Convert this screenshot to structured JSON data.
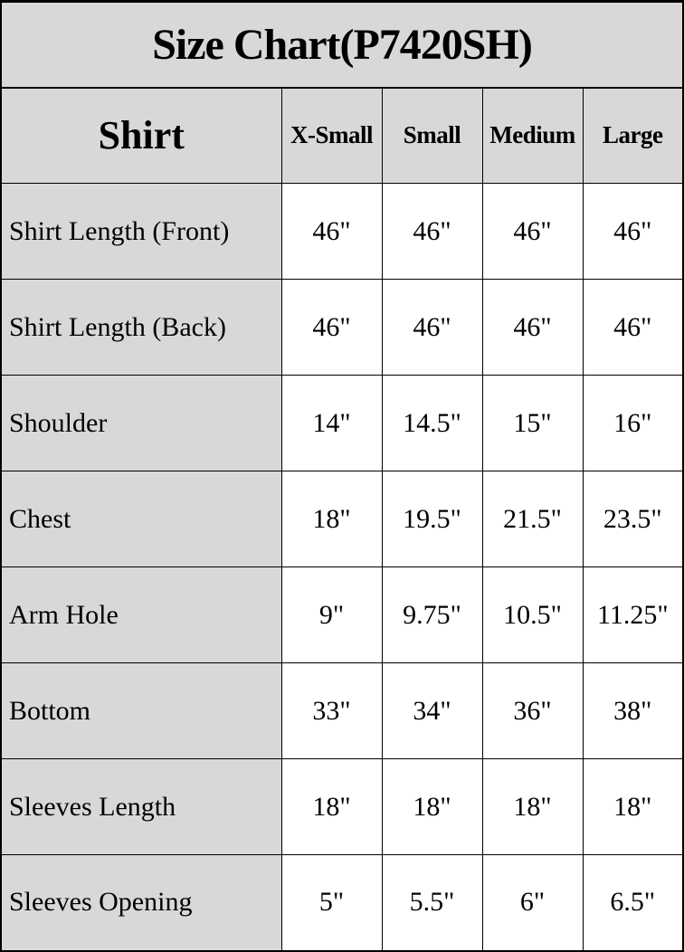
{
  "chart_data": {
    "type": "table",
    "title": "Size Chart(P7420SH)",
    "columns": [
      "Shirt",
      "X-Small",
      "Small",
      "Medium",
      "Large"
    ],
    "rows": [
      [
        "Shirt Length (Front)",
        "46\"",
        "46\"",
        "46\"",
        "46\""
      ],
      [
        "Shirt Length (Back)",
        "46\"",
        "46\"",
        "46\"",
        "46\""
      ],
      [
        "Shoulder",
        "14\"",
        "14.5\"",
        "15\"",
        "16\""
      ],
      [
        "Chest",
        "18\"",
        "19.5\"",
        "21.5\"",
        "23.5\""
      ],
      [
        "Arm Hole",
        "9\"",
        "9.75\"",
        "10.5\"",
        "11.25\""
      ],
      [
        "Bottom",
        "33\"",
        "34\"",
        "36\"",
        "38\""
      ],
      [
        "Sleeves Length",
        "18\"",
        "18\"",
        "18\"",
        "18\""
      ],
      [
        "Sleeves Opening",
        "5\"",
        "5.5\"",
        "6\"",
        "6.5\""
      ]
    ],
    "layout": {
      "grid": "on",
      "header_background": "#d8d8d8",
      "label_column_background": "#d8d8d8",
      "value_cell_background": "#ffffff"
    }
  },
  "colors": {
    "cell_gray": "#d8d8d8",
    "cell_white": "#ffffff",
    "border": "#000000",
    "text": "#000000"
  }
}
